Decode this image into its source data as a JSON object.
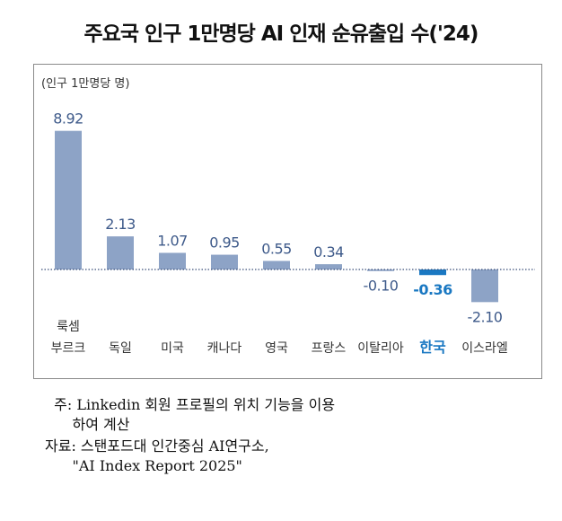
{
  "chart_data": {
    "type": "bar",
    "title": "주요국 인구 1만명당 AI 인재 순유출입 수('24)",
    "unit_label": "(인구 1만명당 명)",
    "categories": [
      "룩셈\n부르크",
      "독일",
      "미국",
      "캐나다",
      "영국",
      "프랑스",
      "이탈리아",
      "한국",
      "이스라엘"
    ],
    "values": [
      8.92,
      2.13,
      1.07,
      0.95,
      0.55,
      0.34,
      -0.1,
      -0.36,
      -2.1
    ],
    "value_labels": [
      "8.92",
      "2.13",
      "1.07",
      "0.95",
      "0.55",
      "0.34",
      "-0.10",
      "-0.36",
      "-2.10"
    ],
    "highlight_category": "한국",
    "colors": {
      "bar": "#8da3c6",
      "highlight": "#1a78c2",
      "label": "#3e5a8a",
      "zero_line": "#3b4f7a"
    },
    "grid": false,
    "legend": "none"
  },
  "notes": {
    "line1": "  주: Linkedin 회원 프로필의 위치 기능을 이용",
    "line2": "      하여 계산",
    "line3": "자료: 스탠포드대 인간중심 AI연구소,",
    "line4": "      \"AI Index Report 2025\""
  }
}
